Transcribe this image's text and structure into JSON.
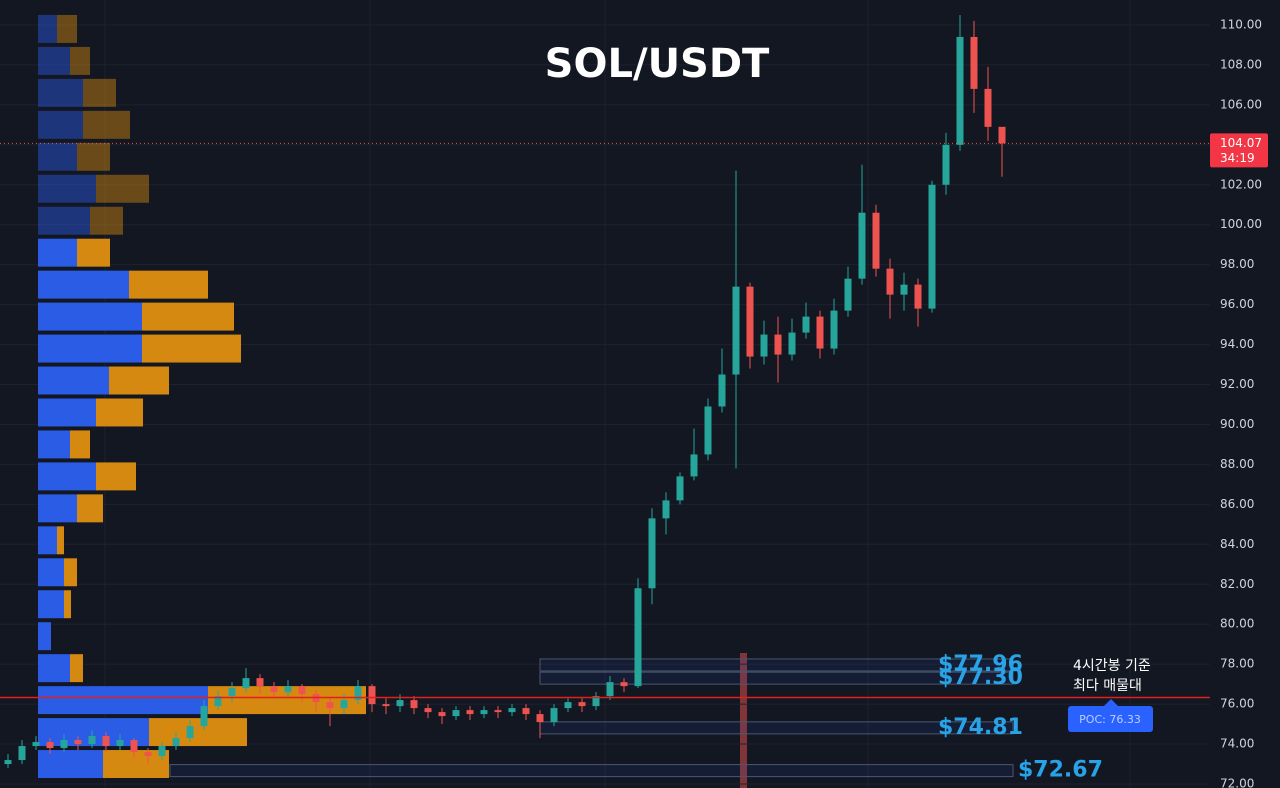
{
  "chart_data": {
    "type": "candlestick",
    "title": "SOL/USDT",
    "ylim": [
      71.8,
      111.25
    ],
    "yticks": [
      {
        "value": 72,
        "label": "72.00"
      },
      {
        "value": 74,
        "label": "74.00"
      },
      {
        "value": 76,
        "label": "76.00"
      },
      {
        "value": 78,
        "label": "78.00"
      },
      {
        "value": 80,
        "label": "80.00"
      },
      {
        "value": 82,
        "label": "82.00"
      },
      {
        "value": 84,
        "label": "84.00"
      },
      {
        "value": 86,
        "label": "86.00"
      },
      {
        "value": 88,
        "label": "88.00"
      },
      {
        "value": 90,
        "label": "90.00"
      },
      {
        "value": 92,
        "label": "92.00"
      },
      {
        "value": 94,
        "label": "94.00"
      },
      {
        "value": 96,
        "label": "96.00"
      },
      {
        "value": 98,
        "label": "98.00"
      },
      {
        "value": 100,
        "label": "100.00"
      },
      {
        "value": 102,
        "label": "102.00"
      },
      {
        "value": 104,
        "label": "104.00"
      },
      {
        "value": 106,
        "label": "106.00"
      },
      {
        "value": 108,
        "label": "108.00"
      },
      {
        "value": 110,
        "label": "110.00"
      }
    ],
    "grid": true,
    "up_color": "#26a69a",
    "down_color": "#ef5350",
    "open": [
      73.0,
      73.2,
      73.9,
      74.1,
      73.8,
      74.2,
      74.0,
      74.4,
      73.9,
      74.2,
      73.6,
      73.4,
      73.9,
      74.3,
      74.9,
      75.9,
      76.4,
      76.8,
      77.3,
      76.9,
      76.6,
      76.9,
      76.5,
      76.1,
      75.8,
      76.2,
      76.9,
      76.0,
      75.9,
      76.2,
      75.8,
      75.6,
      75.4,
      75.7,
      75.5,
      75.7,
      75.6,
      75.8,
      75.5,
      75.1,
      75.8,
      76.1,
      75.9,
      76.4,
      77.1,
      76.9,
      81.8,
      85.3,
      86.2,
      87.4,
      88.5,
      90.9,
      92.5,
      96.9,
      93.4,
      94.5,
      93.5,
      94.6,
      95.4,
      93.8,
      95.7,
      97.3,
      100.6,
      97.8,
      96.5,
      97.0,
      95.8,
      102.0,
      104.0,
      109.4,
      106.8,
      104.9
    ],
    "high": [
      73.5,
      74.2,
      74.4,
      74.3,
      74.5,
      74.4,
      74.7,
      74.6,
      74.5,
      74.3,
      73.8,
      74.1,
      74.6,
      75.2,
      76.2,
      76.7,
      77.1,
      77.8,
      77.5,
      77.1,
      77.2,
      77.0,
      76.7,
      76.3,
      76.5,
      77.2,
      77.0,
      76.3,
      76.5,
      76.4,
      76.0,
      75.8,
      75.9,
      75.9,
      75.9,
      75.9,
      76.0,
      76.0,
      75.7,
      76.0,
      76.3,
      76.3,
      76.6,
      77.4,
      77.3,
      82.3,
      85.8,
      86.6,
      87.6,
      89.8,
      91.3,
      93.8,
      102.7,
      97.1,
      95.2,
      95.4,
      95.3,
      96.1,
      95.7,
      96.3,
      97.9,
      103.0,
      101.0,
      98.3,
      97.6,
      97.3,
      102.2,
      104.6,
      110.5,
      110.2,
      107.9,
      104.6
    ],
    "low": [
      72.8,
      73.0,
      73.7,
      73.5,
      73.6,
      73.7,
      73.8,
      73.6,
      73.7,
      73.3,
      73.0,
      73.2,
      73.7,
      74.1,
      74.7,
      75.7,
      76.1,
      76.6,
      76.5,
      76.3,
      76.4,
      76.1,
      75.6,
      74.9,
      75.5,
      76.0,
      75.6,
      75.5,
      75.6,
      75.5,
      75.3,
      75.0,
      75.2,
      75.2,
      75.3,
      75.3,
      75.4,
      75.2,
      74.3,
      74.9,
      75.6,
      75.6,
      75.7,
      76.2,
      76.6,
      76.8,
      81.0,
      84.5,
      86.0,
      87.2,
      88.2,
      90.6,
      87.8,
      92.8,
      93.0,
      92.1,
      93.2,
      94.3,
      93.3,
      93.5,
      95.4,
      97.0,
      97.4,
      95.3,
      95.7,
      94.9,
      95.6,
      101.5,
      103.7,
      105.6,
      104.2,
      102.4
    ],
    "close": [
      73.2,
      73.9,
      74.1,
      73.8,
      74.2,
      74.0,
      74.4,
      73.9,
      74.2,
      73.6,
      73.4,
      73.9,
      74.3,
      74.9,
      75.9,
      76.4,
      76.8,
      77.3,
      76.9,
      76.6,
      76.9,
      76.5,
      76.1,
      75.8,
      76.2,
      76.9,
      76.0,
      75.9,
      76.2,
      75.8,
      75.6,
      75.4,
      75.7,
      75.5,
      75.7,
      75.6,
      75.8,
      75.5,
      75.1,
      75.8,
      76.1,
      75.9,
      76.4,
      77.1,
      76.9,
      81.8,
      85.3,
      86.2,
      87.4,
      88.5,
      90.9,
      92.5,
      96.9,
      93.4,
      94.5,
      93.5,
      94.6,
      95.4,
      93.8,
      95.7,
      97.3,
      100.6,
      97.8,
      96.5,
      97.0,
      95.8,
      102.0,
      104.0,
      109.4,
      106.8,
      104.9,
      104.07
    ],
    "last_price": {
      "value": 104.07,
      "label": "104.07",
      "countdown": "34:19"
    },
    "volume_profile": {
      "levels": [
        109.8,
        108.2,
        106.6,
        105.0,
        103.4,
        101.8,
        100.2,
        98.6,
        97.0,
        95.4,
        93.8,
        92.2,
        90.6,
        89.0,
        87.4,
        85.8,
        84.2,
        82.6,
        81.0,
        79.4,
        77.8,
        76.2,
        74.6,
        73.0
      ],
      "buy": [
        19,
        32,
        45,
        45,
        39,
        58,
        52,
        39,
        91,
        104,
        104,
        71,
        58,
        32,
        58,
        39,
        19,
        26,
        26,
        13,
        32,
        170,
        111,
        65
      ],
      "sell": [
        20,
        20,
        33,
        47,
        33,
        53,
        33,
        33,
        79,
        92,
        99,
        60,
        47,
        20,
        40,
        26,
        7,
        13,
        7,
        0,
        13,
        158,
        98,
        66
      ],
      "buy_color": "#2b5ce6",
      "sell_color": "#d68910"
    },
    "levels": [
      {
        "value": 77.96,
        "label": "$77.96"
      },
      {
        "value": 77.3,
        "label": "$77.30"
      },
      {
        "value": 74.81,
        "label": "$74.81"
      },
      {
        "value": 72.67,
        "label": "$72.67"
      }
    ],
    "poc": {
      "value": 76.33,
      "label": "POC: 76.33",
      "color": "#e0201c"
    },
    "annotation": [
      "4시간봉 기준",
      "최다 매물대"
    ]
  }
}
